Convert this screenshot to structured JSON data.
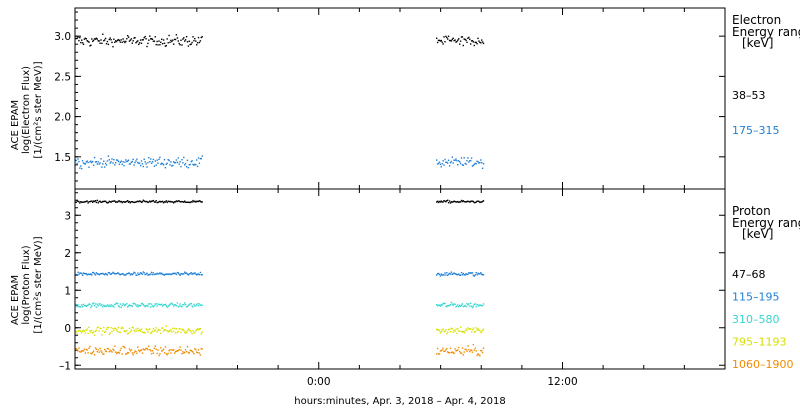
{
  "xlabel": "hours:minutes, Apr.  3, 2018 – Apr.  4, 2018",
  "x_ticks": [
    "0:00",
    "12:00"
  ],
  "chart_data": [
    {
      "type": "scatter",
      "id": "electron",
      "ylabel_lines": [
        "ACE EPAM",
        "log(Electron Flux)",
        "[1/(cm²s ster MeV)]"
      ],
      "ylim": [
        1.1,
        3.35
      ],
      "y_ticks": [
        "1.5",
        "2.0",
        "2.5",
        "3.0"
      ],
      "y_tick_values": [
        1.5,
        2.0,
        2.5,
        3.0
      ],
      "x_range_hours": [
        -12,
        20
      ],
      "segments_hours": [
        [
          -12,
          -5.75
        ],
        [
          5.75,
          8.1
        ]
      ],
      "legend_title_lines": [
        "Electron",
        "Energy ranges",
        "[keV]"
      ],
      "series": [
        {
          "name": "38–53",
          "level": 2.95,
          "noise": 0.04,
          "color": "#000000"
        },
        {
          "name": "175–315",
          "level": 1.44,
          "noise": 0.04,
          "color": "#1f7fd6"
        }
      ]
    },
    {
      "type": "scatter",
      "id": "proton",
      "ylabel_lines": [
        "ACE EPAM",
        "log(Proton Flux)",
        "[1/(cm²s ster MeV)]"
      ],
      "ylim": [
        -1.1,
        3.7
      ],
      "y_ticks": [
        "–1",
        "0",
        "1",
        "2",
        "3"
      ],
      "y_tick_values": [
        -1,
        0,
        1,
        2,
        3
      ],
      "x_range_hours": [
        -12,
        20
      ],
      "segments_hours": [
        [
          -12,
          -5.75
        ],
        [
          5.75,
          8.1
        ]
      ],
      "legend_title_lines": [
        "Proton",
        "Energy ranges",
        "[keV]"
      ],
      "series": [
        {
          "name": "47–68",
          "level": 3.38,
          "noise": 0.02,
          "color": "#000000"
        },
        {
          "name": "115–195",
          "level": 1.45,
          "noise": 0.03,
          "color": "#1f7fd6"
        },
        {
          "name": "310–580",
          "level": 0.62,
          "noise": 0.04,
          "color": "#35d6d0"
        },
        {
          "name": "795–1193",
          "level": -0.05,
          "noise": 0.06,
          "color": "#d8e000"
        },
        {
          "name": "1060–1900",
          "level": -0.6,
          "noise": 0.08,
          "color": "#f08a00"
        }
      ]
    }
  ]
}
